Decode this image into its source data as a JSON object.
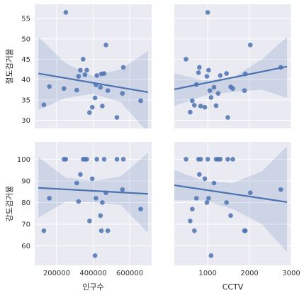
{
  "chart_data": {
    "type": "scatter",
    "style": {
      "panel_bg": "#EAEAF2",
      "grid_color": "#FFFFFF",
      "point_color": "#4C72B0",
      "line_color": "#4C72B0",
      "ci_color": "#4C72B0",
      "grid": true
    },
    "x_variables": [
      {
        "label": "인구수",
        "range": [
          80000,
          720000
        ],
        "ticks": [
          200000,
          400000,
          600000
        ],
        "tick_labels": [
          "200000",
          "400000",
          "600000"
        ]
      },
      {
        "label": "CCTV",
        "range": [
          200,
          3000
        ],
        "ticks": [
          1000,
          2000,
          3000
        ],
        "tick_labels": [
          "1000",
          "2000",
          "3000"
        ]
      }
    ],
    "y_variables": [
      {
        "label": "절도검거율",
        "range": [
          28,
          58.5
        ],
        "ticks": [
          30,
          35,
          40,
          45,
          50,
          55
        ],
        "tick_labels": [
          "30",
          "35",
          "40",
          "45",
          "50",
          "55"
        ]
      },
      {
        "label": "강도검거율",
        "range": [
          51,
          108
        ],
        "ticks": [
          60,
          70,
          80,
          90,
          100
        ],
        "tick_labels": [
          "60",
          "70",
          "80",
          "90",
          "100"
        ]
      }
    ],
    "panels": [
      {
        "x": 0,
        "y": 0,
        "points": [
          [
            130000,
            33.8
          ],
          [
            160000,
            38.3
          ],
          [
            240000,
            37.8
          ],
          [
            250000,
            56.5
          ],
          [
            310000,
            37.4
          ],
          [
            320000,
            40.8
          ],
          [
            330000,
            42.3
          ],
          [
            345000,
            45.0
          ],
          [
            355000,
            41.2
          ],
          [
            365000,
            42.3
          ],
          [
            380000,
            31.9
          ],
          [
            395000,
            33.2
          ],
          [
            410000,
            35.5
          ],
          [
            415000,
            38.7
          ],
          [
            420000,
            41.0
          ],
          [
            440000,
            38.1
          ],
          [
            445000,
            41.4
          ],
          [
            450000,
            33.5
          ],
          [
            460000,
            41.5
          ],
          [
            470000,
            48.5
          ],
          [
            480000,
            37.3
          ],
          [
            530000,
            30.7
          ],
          [
            560000,
            36.6
          ],
          [
            565000,
            43.0
          ],
          [
            660000,
            34.8
          ]
        ],
        "fit": [
          [
            100000,
            41.5
          ],
          [
            700000,
            36.9
          ]
        ],
        "ci_upper": [
          [
            100000,
            50.5
          ],
          [
            250000,
            44.0
          ],
          [
            400000,
            40.8
          ],
          [
            550000,
            42.5
          ],
          [
            700000,
            47.0
          ]
        ],
        "ci_lower": [
          [
            100000,
            32.5
          ],
          [
            250000,
            35.5
          ],
          [
            400000,
            36.5
          ],
          [
            550000,
            34.5
          ],
          [
            700000,
            27.0
          ]
        ]
      },
      {
        "x": 1,
        "y": 0,
        "points": [
          [
            480,
            45.0
          ],
          [
            580,
            32.0
          ],
          [
            630,
            34.8
          ],
          [
            680,
            33.7
          ],
          [
            730,
            38.8
          ],
          [
            780,
            41.7
          ],
          [
            800,
            43.0
          ],
          [
            830,
            33.5
          ],
          [
            930,
            33.2
          ],
          [
            980,
            40.8
          ],
          [
            1000,
            56.5
          ],
          [
            1020,
            42.3
          ],
          [
            1050,
            37.3
          ],
          [
            1080,
            35.6
          ],
          [
            1150,
            38.1
          ],
          [
            1200,
            33.6
          ],
          [
            1250,
            36.6
          ],
          [
            1300,
            41.0
          ],
          [
            1450,
            41.5
          ],
          [
            1480,
            30.7
          ],
          [
            1550,
            38.2
          ],
          [
            1600,
            37.8
          ],
          [
            1880,
            37.3
          ],
          [
            1900,
            41.4
          ],
          [
            2020,
            48.5
          ],
          [
            2750,
            43.0
          ]
        ],
        "fit": [
          [
            200,
            37.6
          ],
          [
            2900,
            43.2
          ]
        ],
        "ci_upper": [
          [
            200,
            41.5
          ],
          [
            900,
            39.8
          ],
          [
            1600,
            40.5
          ],
          [
            2300,
            45.0
          ],
          [
            2900,
            50.5
          ]
        ],
        "ci_lower": [
          [
            200,
            33.5
          ],
          [
            900,
            36.0
          ],
          [
            1600,
            37.0
          ],
          [
            2300,
            37.5
          ],
          [
            2900,
            35.5
          ]
        ]
      },
      {
        "x": 0,
        "y": 1,
        "points": [
          [
            130000,
            67.0
          ],
          [
            160000,
            82.0
          ],
          [
            240000,
            100.0
          ],
          [
            250000,
            100.0
          ],
          [
            310000,
            89.0
          ],
          [
            320000,
            80.5
          ],
          [
            330000,
            93.0
          ],
          [
            345000,
            100.0
          ],
          [
            355000,
            100.0
          ],
          [
            365000,
            100.0
          ],
          [
            380000,
            71.5
          ],
          [
            395000,
            91.0
          ],
          [
            410000,
            55.5
          ],
          [
            415000,
            82.0
          ],
          [
            420000,
            100.0
          ],
          [
            440000,
            74.0
          ],
          [
            445000,
            67.0
          ],
          [
            450000,
            80.0
          ],
          [
            460000,
            100.0
          ],
          [
            470000,
            84.5
          ],
          [
            480000,
            67.0
          ],
          [
            530000,
            100.0
          ],
          [
            560000,
            86.0
          ],
          [
            565000,
            100.0
          ],
          [
            660000,
            77.0
          ]
        ],
        "fit": [
          [
            100000,
            86.8
          ],
          [
            700000,
            84.0
          ]
        ],
        "ci_upper": [
          [
            100000,
            101.0
          ],
          [
            250000,
            91.5
          ],
          [
            400000,
            90.0
          ],
          [
            550000,
            92.0
          ],
          [
            700000,
            103.0
          ]
        ],
        "ci_lower": [
          [
            100000,
            73.0
          ],
          [
            250000,
            80.5
          ],
          [
            400000,
            80.0
          ],
          [
            550000,
            79.0
          ],
          [
            700000,
            66.0
          ]
        ]
      },
      {
        "x": 1,
        "y": 1,
        "points": [
          [
            480,
            100.0
          ],
          [
            580,
            71.5
          ],
          [
            630,
            77.0
          ],
          [
            680,
            67.0
          ],
          [
            730,
            82.0
          ],
          [
            780,
            100.0
          ],
          [
            800,
            93.0
          ],
          [
            830,
            100.0
          ],
          [
            930,
            91.0
          ],
          [
            980,
            80.0
          ],
          [
            1000,
            100.0
          ],
          [
            1020,
            82.0
          ],
          [
            1080,
            55.5
          ],
          [
            1150,
            89.0
          ],
          [
            1200,
            100.0
          ],
          [
            1250,
            100.0
          ],
          [
            1300,
            100.0
          ],
          [
            1450,
            80.0
          ],
          [
            1480,
            100.0
          ],
          [
            1550,
            74.0
          ],
          [
            1600,
            100.0
          ],
          [
            1880,
            67.0
          ],
          [
            1900,
            67.0
          ],
          [
            2020,
            84.5
          ],
          [
            2750,
            86.0
          ]
        ],
        "fit": [
          [
            200,
            88.0
          ],
          [
            2900,
            80.2
          ]
        ],
        "ci_upper": [
          [
            200,
            95.0
          ],
          [
            900,
            90.0
          ],
          [
            1600,
            89.0
          ],
          [
            2300,
            94.5
          ],
          [
            2900,
            106.0
          ]
        ],
        "ci_lower": [
          [
            200,
            81.0
          ],
          [
            900,
            81.0
          ],
          [
            1600,
            77.0
          ],
          [
            2300,
            70.0
          ],
          [
            2900,
            57.0
          ]
        ]
      }
    ]
  }
}
